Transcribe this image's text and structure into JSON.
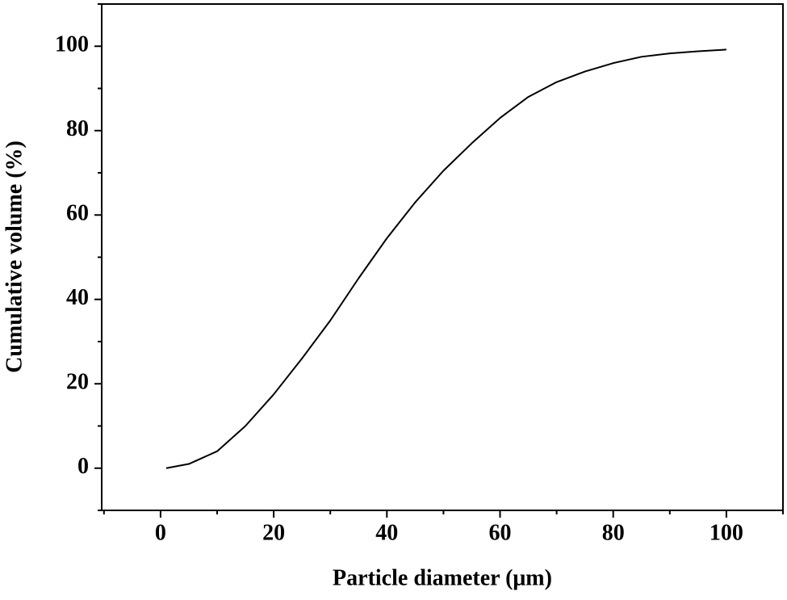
{
  "chart_data": {
    "type": "line",
    "x_label": "Particle diameter (μm)",
    "y_label": "Cumulative volume (%)",
    "x": [
      1,
      5,
      10,
      15,
      20,
      25,
      30,
      35,
      40,
      45,
      50,
      55,
      60,
      65,
      70,
      75,
      80,
      85,
      90,
      95,
      100
    ],
    "series": [
      {
        "color": "#000000",
        "values": [
          0,
          1,
          4,
          10,
          17.5,
          26,
          35,
          45,
          54.5,
          63,
          70.5,
          77,
          83,
          88,
          91.5,
          94,
          96,
          97.5,
          98.3,
          98.8,
          99.2
        ]
      }
    ],
    "xlim": [
      -10.4,
      110
    ],
    "ylim": [
      -10,
      110
    ],
    "xticks": [
      0,
      20,
      40,
      60,
      80,
      100
    ],
    "yticks": [
      0,
      20,
      40,
      60,
      80,
      100
    ],
    "xminor_ticks": [
      -10,
      10,
      30,
      50,
      70,
      90,
      110
    ],
    "yminor_ticks": [
      -10,
      10,
      30,
      50,
      70,
      90,
      110
    ]
  }
}
